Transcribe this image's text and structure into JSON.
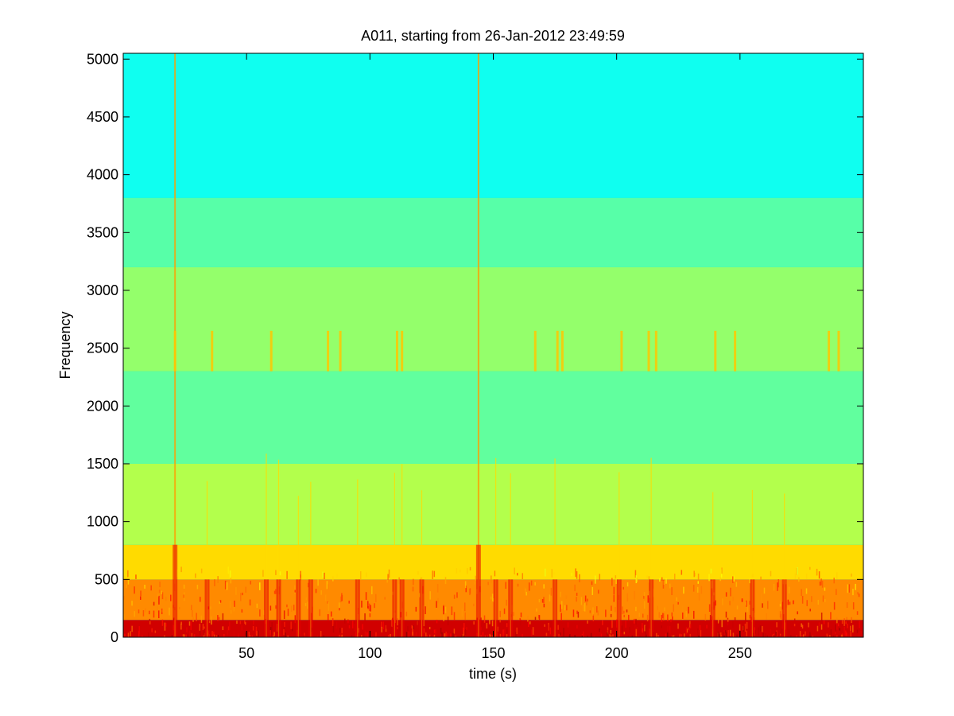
{
  "chart_data": {
    "type": "heatmap",
    "title": "A011, starting from 26-Jan-2012 23:49:59",
    "xlabel": "time (s)",
    "ylabel": "Frequency",
    "xlim": [
      0,
      300
    ],
    "ylim": [
      0,
      5050
    ],
    "x_ticks": [
      50,
      100,
      150,
      200,
      250
    ],
    "y_ticks": [
      0,
      500,
      1000,
      1500,
      2000,
      2500,
      3000,
      3500,
      4000,
      4500,
      5000
    ],
    "colormap": "jet",
    "grid": false,
    "frequency_bands": [
      {
        "from": 0,
        "to": 150,
        "level": 0.92
      },
      {
        "from": 150,
        "to": 500,
        "level": 0.74
      },
      {
        "from": 500,
        "to": 800,
        "level": 0.66
      },
      {
        "from": 800,
        "to": 1500,
        "level": 0.55
      },
      {
        "from": 1500,
        "to": 2300,
        "level": 0.47
      },
      {
        "from": 2300,
        "to": 3200,
        "level": 0.52
      },
      {
        "from": 3200,
        "to": 3800,
        "level": 0.46
      },
      {
        "from": 3800,
        "to": 5050,
        "level": 0.39
      }
    ],
    "broadband_events_s": [
      21,
      34,
      58,
      63,
      71,
      76,
      95,
      110,
      113,
      121,
      144,
      151,
      157,
      175,
      201,
      214,
      239,
      255,
      268
    ],
    "strong_events_s": [
      21,
      144
    ],
    "tonal_bursts_s": [
      21,
      36,
      60,
      83,
      88,
      111,
      113,
      167,
      176,
      178,
      202,
      213,
      216,
      240,
      248,
      286,
      290
    ],
    "tonal_burst_band_hz": [
      2300,
      2650
    ]
  }
}
